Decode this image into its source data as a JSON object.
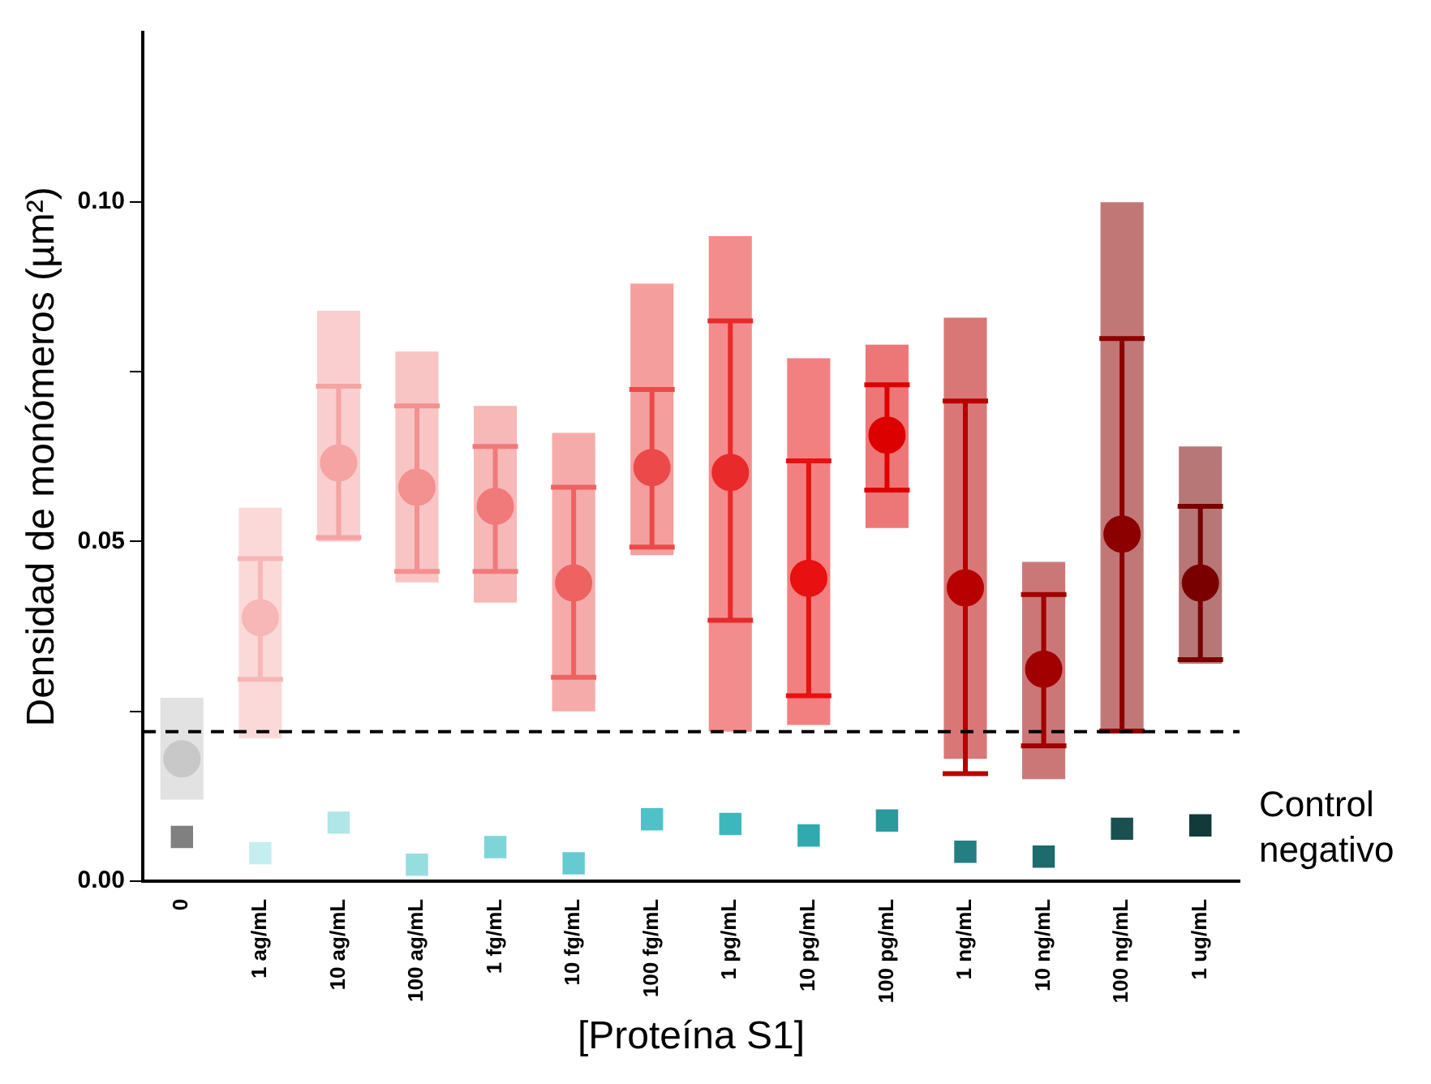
{
  "chart_data": {
    "type": "scatter",
    "xlabel": "[Proteína S1]",
    "ylabel": "Densidad de monómeros (µm²)",
    "categories": [
      "0",
      "1 ag/mL",
      "10 ag/mL",
      "100 ag/mL",
      "1 fg/mL",
      "10 fg/mL",
      "100 fg/mL",
      "1 pg/mL",
      "10 pg/mL",
      "100 pg/mL",
      "1 ng/mL",
      "10 ng/mL",
      "100 ng/mL",
      "1 ug/mL"
    ],
    "ylim": [
      0,
      0.125
    ],
    "yticks": [
      {
        "value": 0,
        "label": "0.00"
      },
      {
        "value": 0.025,
        "label": null
      },
      {
        "value": 0.05,
        "label": "0.05"
      },
      {
        "value": 0.075,
        "label": null
      },
      {
        "value": 0.1,
        "label": "0.10"
      }
    ],
    "grid": false,
    "legend": false,
    "ref_lines": [
      {
        "axis": "y",
        "value": 0.022,
        "color": "#000000",
        "line_style": "dashed"
      }
    ],
    "annotations": [
      "Control negativo"
    ],
    "series": [
      {
        "type": "bar",
        "base": [
          0.012,
          0.021,
          0.05,
          0.044,
          0.041,
          0.025,
          0.048,
          0.022,
          0.023,
          0.052,
          0.018,
          0.015,
          0.022,
          0.032
        ],
        "values": [
          0.015,
          0.034,
          0.034,
          0.034,
          0.029,
          0.041,
          0.04,
          0.073,
          0.054,
          0.027,
          0.065,
          0.032,
          0.078,
          0.032
        ],
        "colors": [
          "#c8c8c8",
          "#f7b7b7",
          "#f5a3a3",
          "#f39090",
          "#f07a7a",
          "#ee6262",
          "#ec4a4a",
          "#e82a2a",
          "#e81010",
          "#dd0000",
          "#b80000",
          "#a00000",
          "#8c0000",
          "#7a0000"
        ]
      },
      {
        "type": "scatter",
        "marker": "circle",
        "values": [
          0.018,
          0.0388,
          0.0616,
          0.058,
          0.0552,
          0.0439,
          0.0609,
          0.0602,
          0.0446,
          0.0657,
          0.0432,
          0.0312,
          0.0511,
          0.0439
        ],
        "errors": [
          null,
          [
            0.0297,
            0.0475
          ],
          [
            0.0506,
            0.0729
          ],
          [
            0.0456,
            0.07
          ],
          [
            0.0456,
            0.064
          ],
          [
            0.03,
            0.058
          ],
          [
            0.0492,
            0.0724
          ],
          [
            0.0384,
            0.0825
          ],
          [
            0.0273,
            0.0619
          ],
          [
            0.0576,
            0.0731
          ],
          [
            0.0158,
            0.0707
          ],
          [
            0.0199,
            0.0422
          ],
          [
            0.0221,
            0.0799
          ],
          [
            0.0326,
            0.0552
          ]
        ],
        "colors": [
          "#c8c8c8",
          "#f7b7b7",
          "#f5a3a3",
          "#f39090",
          "#f07a7a",
          "#ee6262",
          "#ec4a4a",
          "#e82a2a",
          "#e81010",
          "#dd0000",
          "#b80000",
          "#a00000",
          "#8c0000",
          "#7a0000"
        ]
      },
      {
        "type": "scatter",
        "marker": "square",
        "values": [
          0.0065,
          0.0041,
          0.0086,
          0.0024,
          0.005,
          0.0026,
          0.0091,
          0.0084,
          0.0067,
          0.0089,
          0.0043,
          0.0036,
          0.0077,
          0.0082
        ],
        "colors": [
          "#808080",
          "#c5eef0",
          "#b0e6e8",
          "#96dde0",
          "#7fd4d8",
          "#66cbd0",
          "#50c2c7",
          "#3cb8bd",
          "#30aaae",
          "#2a9a9c",
          "#247f82",
          "#1e6b6d",
          "#1a5050",
          "#123a3a"
        ]
      }
    ]
  }
}
